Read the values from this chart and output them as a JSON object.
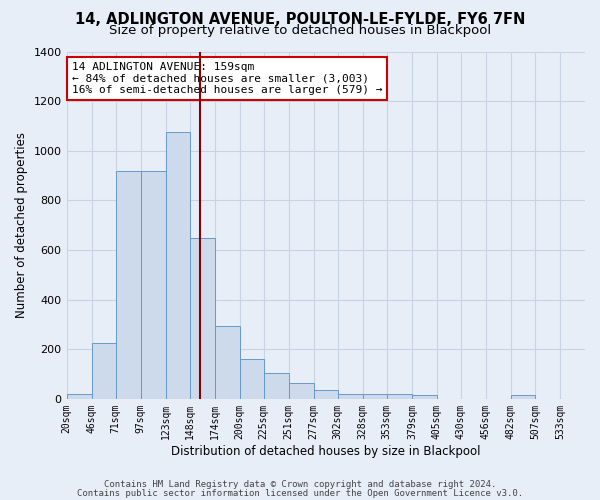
{
  "title": "14, ADLINGTON AVENUE, POULTON-LE-FYLDE, FY6 7FN",
  "subtitle": "Size of property relative to detached houses in Blackpool",
  "xlabel": "Distribution of detached houses by size in Blackpool",
  "ylabel": "Number of detached properties",
  "footnote1": "Contains HM Land Registry data © Crown copyright and database right 2024.",
  "footnote2": "Contains public sector information licensed under the Open Government Licence v3.0.",
  "annotation_title": "14 ADLINGTON AVENUE: 159sqm",
  "annotation_line1": "← 84% of detached houses are smaller (3,003)",
  "annotation_line2": "16% of semi-detached houses are larger (579) →",
  "property_sqm": 159,
  "bar_left_edges": [
    20,
    46,
    71,
    97,
    123,
    148,
    174,
    200,
    225,
    251,
    277,
    302,
    328,
    353,
    379,
    405,
    430,
    456,
    482,
    507,
    533
  ],
  "bar_widths": [
    26,
    25,
    26,
    26,
    25,
    26,
    26,
    25,
    26,
    26,
    25,
    26,
    25,
    26,
    26,
    25,
    26,
    26,
    25,
    26,
    26
  ],
  "bar_heights": [
    20,
    225,
    920,
    920,
    1075,
    650,
    295,
    160,
    105,
    65,
    35,
    20,
    20,
    20,
    15,
    0,
    0,
    0,
    15,
    0,
    0
  ],
  "bar_color": "#cddaeb",
  "bar_edge_color": "#6699cc",
  "tick_labels": [
    "20sqm",
    "46sqm",
    "71sqm",
    "97sqm",
    "123sqm",
    "148sqm",
    "174sqm",
    "200sqm",
    "225sqm",
    "251sqm",
    "277sqm",
    "302sqm",
    "328sqm",
    "353sqm",
    "379sqm",
    "405sqm",
    "430sqm",
    "456sqm",
    "482sqm",
    "507sqm",
    "533sqm"
  ],
  "ylim": [
    0,
    1400
  ],
  "yticks": [
    0,
    200,
    400,
    600,
    800,
    1000,
    1200,
    1400
  ],
  "grid_color": "#c8d4e4",
  "bg_color": "#e8eef8",
  "property_line_color": "#8b0000",
  "annotation_box_color": "#ffffff",
  "annotation_border_color": "#cc0000",
  "title_fontsize": 10.5,
  "subtitle_fontsize": 9.5,
  "label_fontsize": 8.5,
  "tick_fontsize": 7,
  "annotation_fontsize": 8,
  "footnote_fontsize": 6.5
}
